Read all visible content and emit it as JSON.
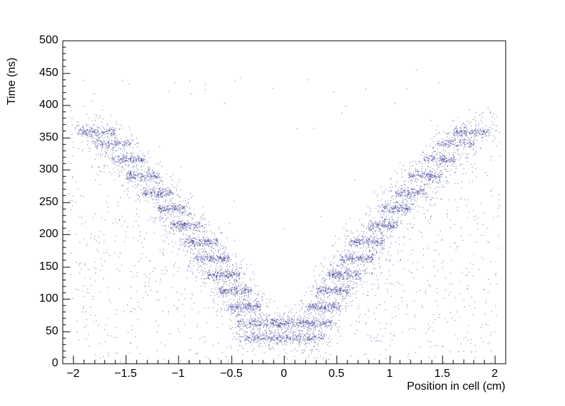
{
  "chart_data": {
    "type": "scatter",
    "title": "",
    "xlabel": "Position in cell (cm)",
    "ylabel": "Time (ns)",
    "xlim": [
      -2.1,
      2.1
    ],
    "ylim": [
      0,
      500
    ],
    "x_ticks": [
      -2,
      -1.5,
      -1,
      -0.5,
      0,
      0.5,
      1,
      1.5,
      2
    ],
    "x_tick_labels": [
      "−2",
      "−1.5",
      "−1",
      "−0.5",
      "0",
      "0.5",
      "1",
      "1.5",
      "2"
    ],
    "y_ticks": [
      0,
      50,
      100,
      150,
      200,
      250,
      300,
      350,
      400,
      450,
      500
    ],
    "y_tick_labels": [
      "0",
      "50",
      "100",
      "150",
      "200",
      "250",
      "300",
      "350",
      "400",
      "450",
      "500"
    ],
    "x_minor_step": 0.1,
    "x_major_step": 0.5,
    "y_minor_step": 10,
    "y_major_step": 50,
    "grid": false,
    "legend": null,
    "marker_color": "#2e2e8f",
    "axis_color": "#000000",
    "seed": 20240613,
    "core_sigma": 3.5,
    "halo_sigma": 16,
    "halo_fraction": 0.55,
    "halo_x_pad": 0.07,
    "steps": [
      {
        "x0": -0.38,
        "x1": 0.38,
        "y": 40,
        "n": 340,
        "mirror": false
      },
      {
        "x0": 0.0,
        "x1": 0.45,
        "y": 63,
        "n": 210,
        "mirror": true
      },
      {
        "x0": 0.22,
        "x1": 0.53,
        "y": 88,
        "n": 170,
        "mirror": true
      },
      {
        "x0": 0.3,
        "x1": 0.62,
        "y": 113,
        "n": 170,
        "mirror": true
      },
      {
        "x0": 0.42,
        "x1": 0.73,
        "y": 138,
        "n": 170,
        "mirror": true
      },
      {
        "x0": 0.52,
        "x1": 0.85,
        "y": 163,
        "n": 170,
        "mirror": true
      },
      {
        "x0": 0.63,
        "x1": 0.95,
        "y": 189,
        "n": 170,
        "mirror": true
      },
      {
        "x0": 0.8,
        "x1": 1.08,
        "y": 214,
        "n": 160,
        "mirror": true
      },
      {
        "x0": 0.93,
        "x1": 1.2,
        "y": 240,
        "n": 150,
        "mirror": true
      },
      {
        "x0": 1.05,
        "x1": 1.35,
        "y": 265,
        "n": 150,
        "mirror": true
      },
      {
        "x0": 1.18,
        "x1": 1.5,
        "y": 291,
        "n": 160,
        "mirror": true
      },
      {
        "x0": 1.32,
        "x1": 1.63,
        "y": 316,
        "n": 140,
        "mirror": true
      },
      {
        "x0": 1.45,
        "x1": 1.8,
        "y": 341,
        "n": 140,
        "mirror": true
      },
      {
        "x0": 1.6,
        "x1": 1.95,
        "y": 359,
        "n": 150,
        "mirror": true
      }
    ],
    "background": {
      "n": 1000,
      "x": [
        -2.05,
        2.05
      ],
      "y": [
        2,
        400
      ],
      "envelope_intercept": 40,
      "envelope_slope": 175,
      "envelope_margin": 35
    },
    "background_uniform": {
      "n": 60,
      "x": [
        -2.05,
        2.05
      ],
      "y": [
        2,
        460
      ]
    },
    "background_high": {
      "n": 14,
      "x": [
        -2.0,
        2.0
      ],
      "y": [
        400,
        465
      ]
    }
  }
}
